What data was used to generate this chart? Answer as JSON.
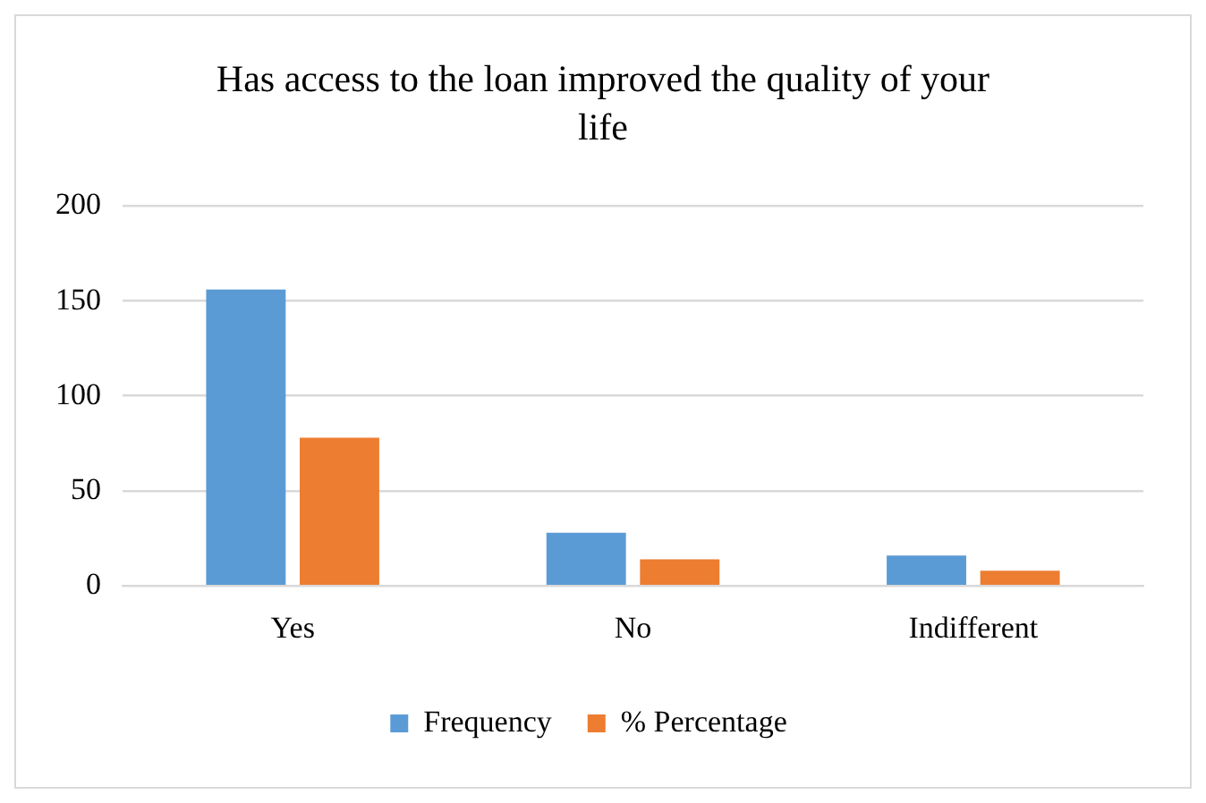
{
  "chart_data": {
    "type": "bar",
    "title": "Has access to the loan improved the quality of your life",
    "categories": [
      "Yes",
      "No",
      "Indifferent"
    ],
    "series": [
      {
        "name": "Frequency",
        "color": "#5b9bd5",
        "values": [
          156,
          28,
          16
        ]
      },
      {
        "name": "% Percentage",
        "color": "#ed7d31",
        "values": [
          78,
          14,
          8
        ]
      }
    ],
    "ylim": [
      0,
      200
    ],
    "yticks": [
      0,
      50,
      100,
      150,
      200
    ],
    "grid": "y",
    "legend": "bottom"
  }
}
